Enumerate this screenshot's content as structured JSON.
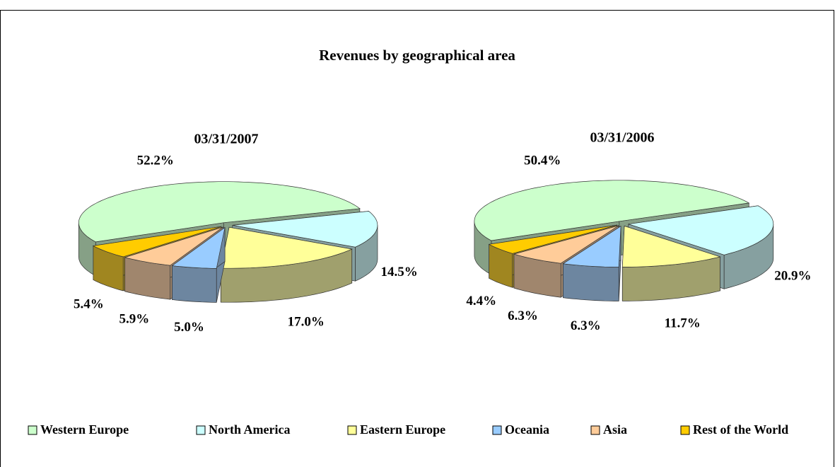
{
  "title": "Revenues by geographical area",
  "categories": [
    "Western Europe",
    "North America",
    "Eastern Europe",
    "Oceania",
    "Asia",
    "Rest of the World"
  ],
  "colors": [
    "#ccffcc",
    "#ccffff",
    "#ffff99",
    "#99ccff",
    "#ffcc99",
    "#ffcc00"
  ],
  "chart_data": [
    {
      "type": "pie",
      "title": "03/31/2007",
      "values": [
        52.2,
        14.5,
        17.0,
        5.0,
        5.9,
        5.4
      ],
      "value_labels": [
        "52.2%",
        "14.5%",
        "17.0%",
        "5.0%",
        "5.9%",
        "5.4%"
      ]
    },
    {
      "type": "pie",
      "title": "03/31/2006",
      "values": [
        50.4,
        20.9,
        11.7,
        6.3,
        6.3,
        4.4
      ],
      "value_labels": [
        "50.4%",
        "20.9%",
        "11.7%",
        "6.3%",
        "6.3%",
        "4.4%"
      ]
    }
  ]
}
